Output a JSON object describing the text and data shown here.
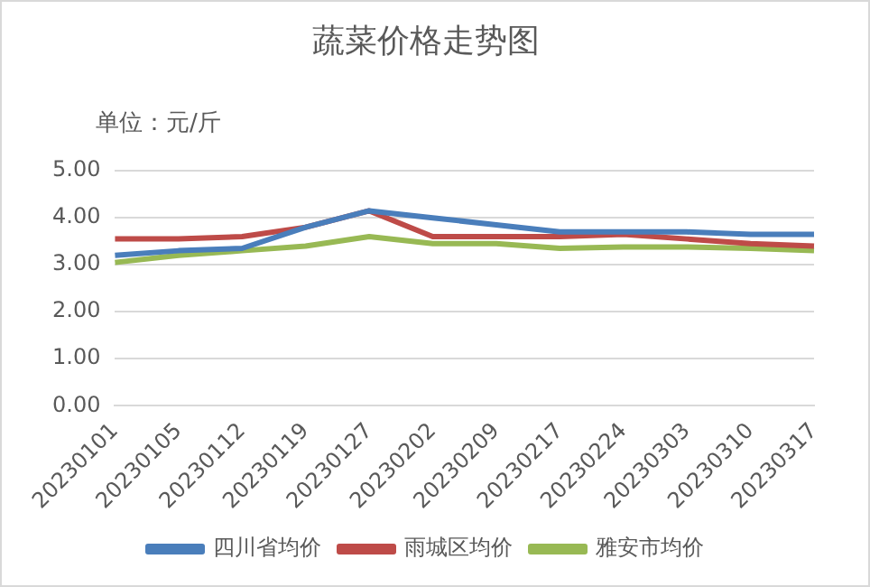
{
  "chart_data": {
    "type": "line",
    "title": "蔬菜价格走势图",
    "annotations": [
      "单位：元/斤"
    ],
    "categories": [
      "20230101",
      "20230105",
      "20230112",
      "20230119",
      "20230127",
      "20230202",
      "20230209",
      "20230217",
      "20230224",
      "20230303",
      "20230310",
      "20230317"
    ],
    "series": [
      {
        "name": "四川省均价",
        "color": "#4a7ebb",
        "values": [
          3.2,
          3.3,
          3.35,
          3.8,
          4.15,
          4.0,
          3.85,
          3.7,
          3.7,
          3.7,
          3.65,
          3.65
        ]
      },
      {
        "name": "雨城区均价",
        "color": "#be4b48",
        "values": [
          3.55,
          3.55,
          3.6,
          3.8,
          4.15,
          3.6,
          3.6,
          3.6,
          3.65,
          3.55,
          3.45,
          3.4
        ]
      },
      {
        "name": "雅安市均价",
        "color": "#98b954",
        "values": [
          3.05,
          3.2,
          3.3,
          3.4,
          3.6,
          3.45,
          3.45,
          3.35,
          3.38,
          3.38,
          3.35,
          3.3
        ]
      }
    ],
    "ylim": [
      0,
      5
    ],
    "yticks": [
      {
        "value": 0,
        "label": "0.00"
      },
      {
        "value": 1,
        "label": "1.00"
      },
      {
        "value": 2,
        "label": "2.00"
      },
      {
        "value": 3,
        "label": "3.00"
      },
      {
        "value": 4,
        "label": "4.00"
      },
      {
        "value": 5,
        "label": "5.00"
      }
    ],
    "grid": "y",
    "legend": "bottom",
    "marker": "none",
    "line_style": "solid"
  }
}
